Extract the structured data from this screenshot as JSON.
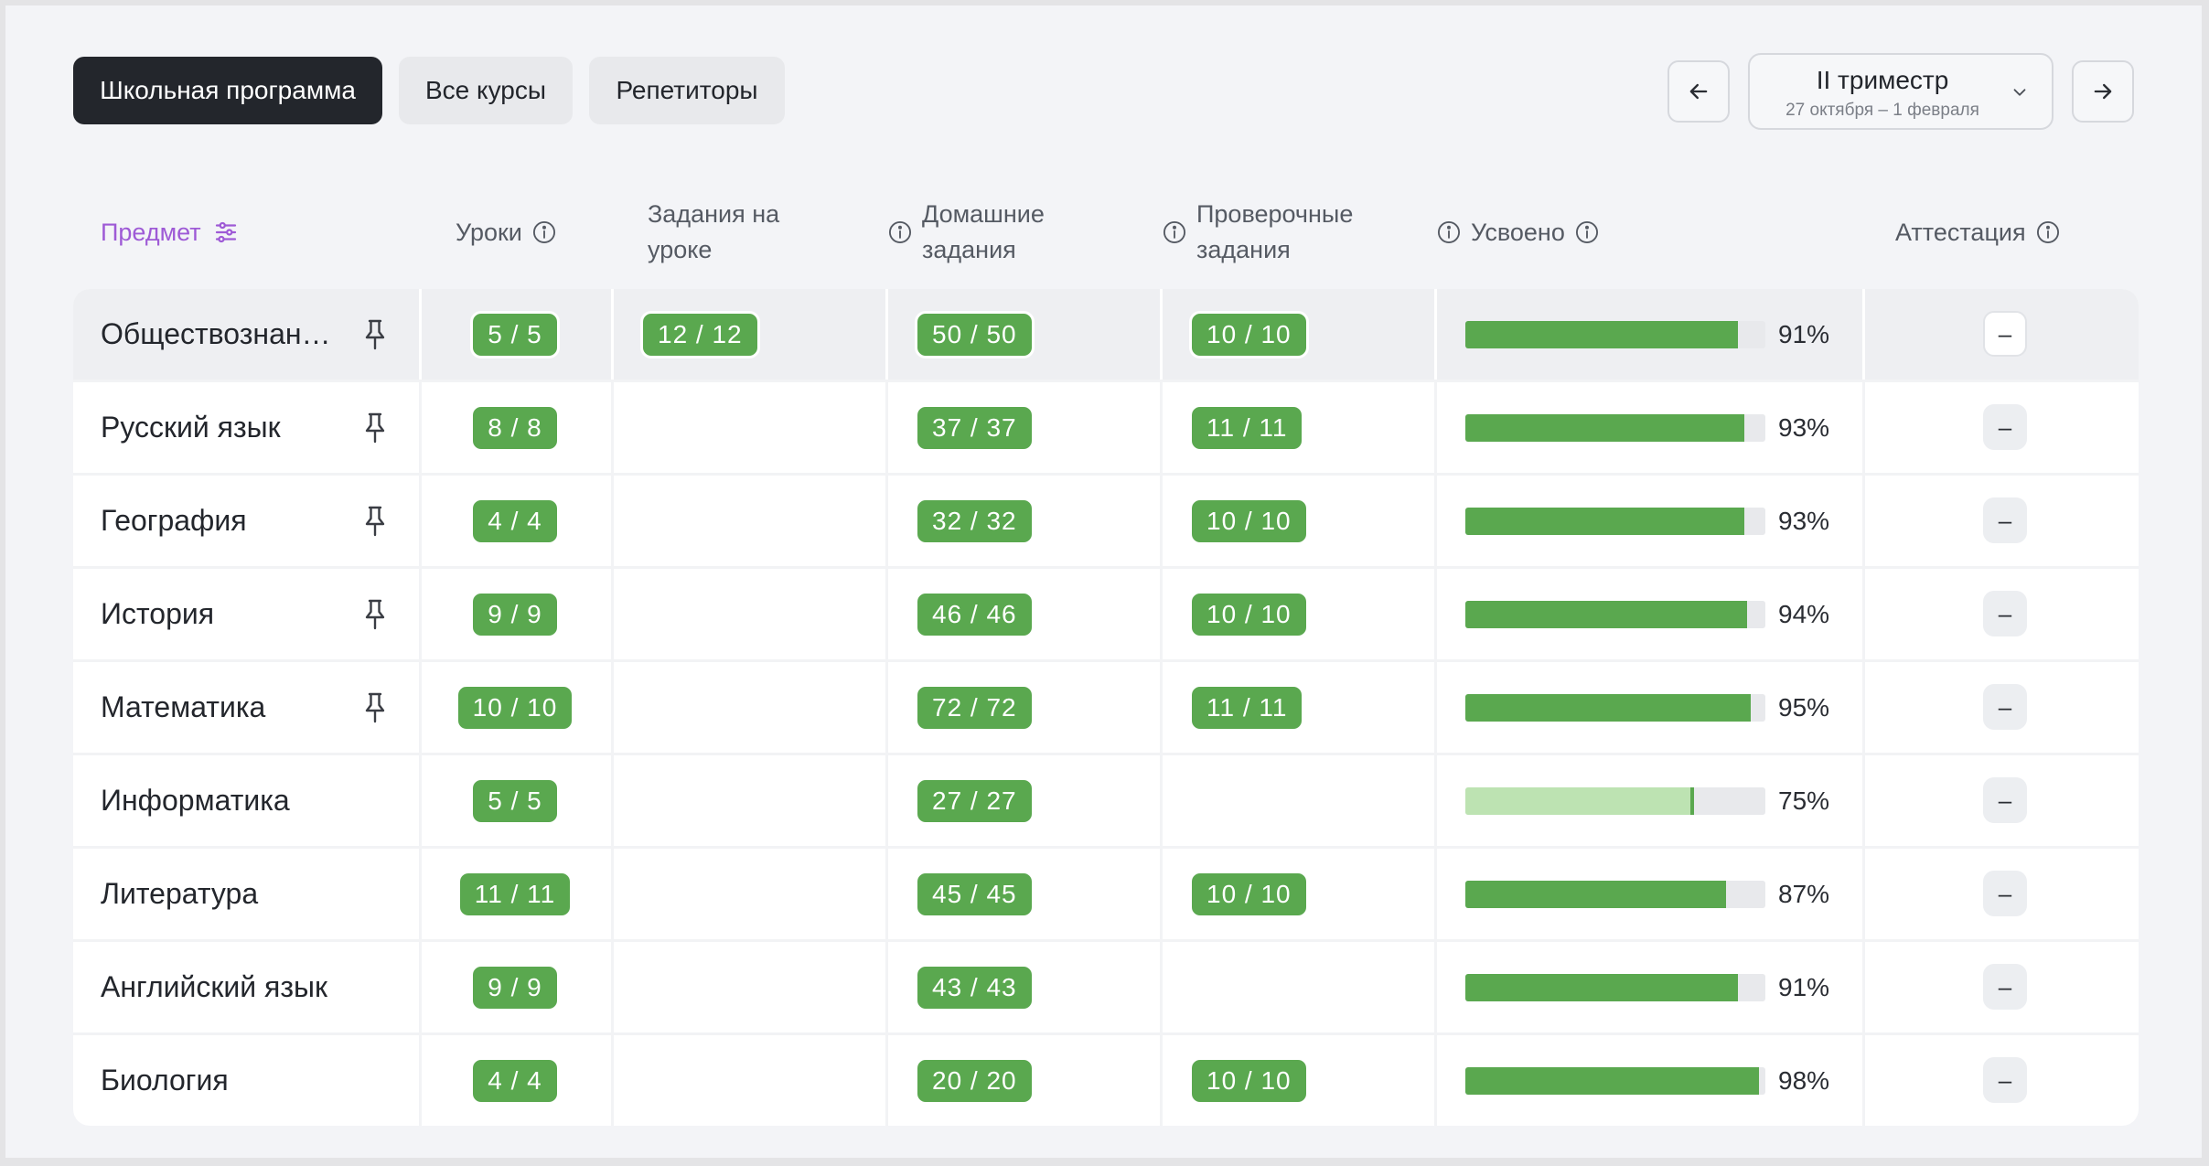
{
  "tabs": [
    {
      "label": "Школьная программа",
      "active": true
    },
    {
      "label": "Все курсы",
      "active": false
    },
    {
      "label": "Репетиторы",
      "active": false
    }
  ],
  "period": {
    "title": "II триместр",
    "dates": "27 октября – 1 февраля"
  },
  "columns": {
    "subject": "Предмет",
    "lessons": "Уроки",
    "tasks_line1": "Задания на",
    "tasks_line2": "уроке",
    "homework_line1": "Домашние",
    "homework_line2": "задания",
    "tests_line1": "Проверочные",
    "tests_line2": "задания",
    "mastered": "Усвоено",
    "attestation": "Аттестация"
  },
  "colors": {
    "accent": "#9e5ad6",
    "success": "#5aa84f",
    "success_light": "#bde3b2",
    "dark": "#23262c"
  },
  "rows": [
    {
      "subject": "Обществознан…",
      "pinned": true,
      "lessons": "5 / 5",
      "tasks": "12 / 12",
      "homework": "50 / 50",
      "tests": "10 / 10",
      "mastered_pct": 91,
      "mastered_label": "91%",
      "attestation": "–"
    },
    {
      "subject": "Русский язык",
      "pinned": true,
      "lessons": "8 / 8",
      "tasks": "",
      "homework": "37 / 37",
      "tests": "11 / 11",
      "mastered_pct": 93,
      "mastered_label": "93%",
      "attestation": "–"
    },
    {
      "subject": "География",
      "pinned": true,
      "lessons": "4 / 4",
      "tasks": "",
      "homework": "32 / 32",
      "tests": "10 / 10",
      "mastered_pct": 93,
      "mastered_label": "93%",
      "attestation": "–"
    },
    {
      "subject": "История",
      "pinned": true,
      "lessons": "9 / 9",
      "tasks": "",
      "homework": "46 / 46",
      "tests": "10 / 10",
      "mastered_pct": 94,
      "mastered_label": "94%",
      "attestation": "–"
    },
    {
      "subject": "Математика",
      "pinned": true,
      "lessons": "10 / 10",
      "tasks": "",
      "homework": "72 / 72",
      "tests": "11 / 11",
      "mastered_pct": 95,
      "mastered_label": "95%",
      "attestation": "–"
    },
    {
      "subject": "Информатика",
      "pinned": false,
      "lessons": "5 / 5",
      "tasks": "",
      "homework": "27 / 27",
      "tests": "",
      "mastered_pct": 75,
      "mastered_label": "75%",
      "mastered_light": true,
      "attestation": "–"
    },
    {
      "subject": "Литература",
      "pinned": false,
      "lessons": "11 / 11",
      "tasks": "",
      "homework": "45 / 45",
      "tests": "10 / 10",
      "mastered_pct": 87,
      "mastered_label": "87%",
      "attestation": "–"
    },
    {
      "subject": "Английский язык",
      "pinned": false,
      "lessons": "9 / 9",
      "tasks": "",
      "homework": "43 / 43",
      "tests": "",
      "mastered_pct": 91,
      "mastered_label": "91%",
      "attestation": "–"
    },
    {
      "subject": "Биология",
      "pinned": false,
      "lessons": "4 / 4",
      "tasks": "",
      "homework": "20 / 20",
      "tests": "10 / 10",
      "mastered_pct": 98,
      "mastered_label": "98%",
      "attestation": "–"
    }
  ]
}
